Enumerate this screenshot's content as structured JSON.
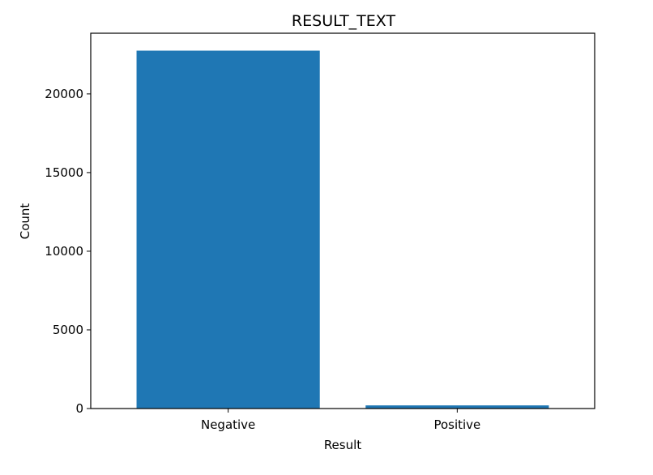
{
  "chart_data": {
    "type": "bar",
    "title": "RESULT_TEXT",
    "xlabel": "Result",
    "ylabel": "Count",
    "categories": [
      "Negative",
      "Positive"
    ],
    "values": [
      22750,
      200
    ],
    "ylim": [
      0,
      23858
    ],
    "yticks": [
      0,
      5000,
      10000,
      15000,
      20000
    ],
    "ytick_labels": [
      "0",
      "5000",
      "10000",
      "15000",
      "20000"
    ],
    "bar_color": "#1f77b4",
    "grid": false,
    "legend": "none"
  }
}
